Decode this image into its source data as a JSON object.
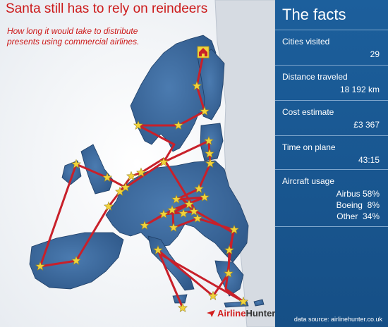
{
  "header": {
    "title": "Santa still has to rely on reindeers",
    "subtitle_line1": "How long it would take to distribute",
    "subtitle_line2": "presents using commercial airlines."
  },
  "facts_panel": {
    "title": "The facts",
    "items": [
      {
        "label": "Cities visited",
        "value": "29"
      },
      {
        "label": "Distance traveled",
        "value": "18 192 km"
      },
      {
        "label": "Cost estimate",
        "value": "£3 367"
      },
      {
        "label": "Time on plane",
        "value": "43:15"
      }
    ],
    "aircraft_usage": {
      "label": "Aircraft usage",
      "rows": [
        "Airbus 58%",
        "Boeing  8%",
        "Other  34%"
      ]
    },
    "source": "data source: airlinehunter.co.uk"
  },
  "logo": {
    "part1": "Airline",
    "part2": "Hunter"
  },
  "colors": {
    "panel": "#1a5b96",
    "land_eu": "#3a689c",
    "land_non_eu": "#d9dde3",
    "route": "#c8202a",
    "star": "#f2d33a",
    "accent_text": "#cc1a1a"
  },
  "icons": {
    "start": "house-icon",
    "stop": "star-icon"
  }
}
